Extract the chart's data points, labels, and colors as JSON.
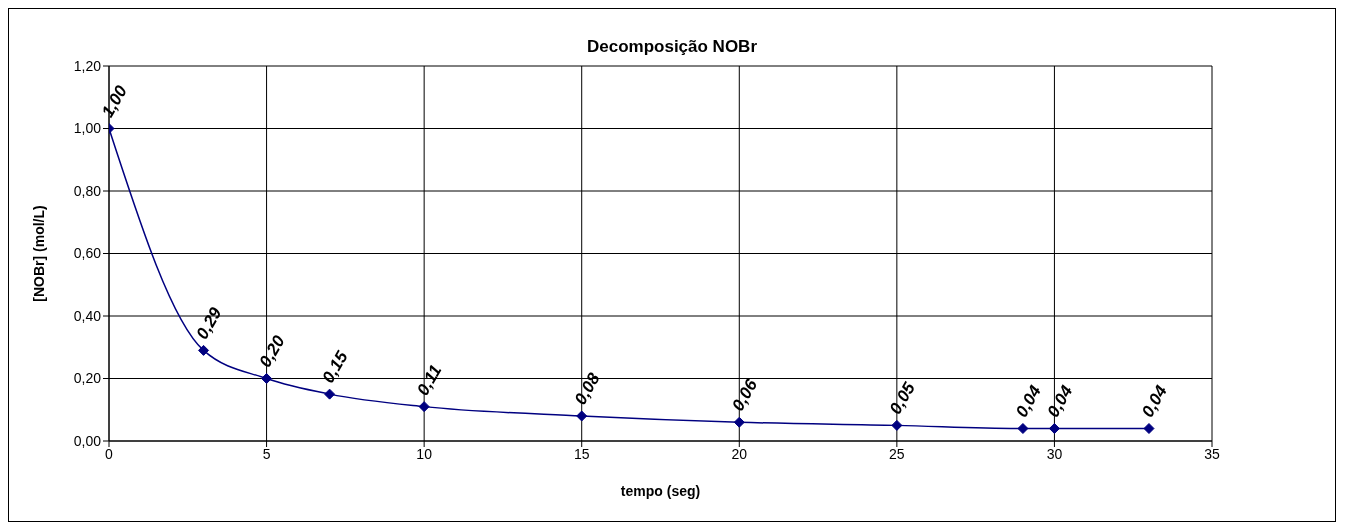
{
  "chart_data": {
    "type": "line",
    "title": "Decomposição NOBr",
    "xlabel": "tempo (seg)",
    "ylabel": "[NOBr] (mol/L)",
    "x": [
      0,
      3,
      5,
      7,
      10,
      15,
      20,
      25,
      29,
      30,
      33
    ],
    "values": [
      1.0,
      0.29,
      0.2,
      0.15,
      0.11,
      0.08,
      0.06,
      0.05,
      0.04,
      0.04,
      0.04
    ],
    "value_labels": [
      "1,00",
      "0,29",
      "0,20",
      "0,15",
      "0,11",
      "0,08",
      "0,06",
      "0,05",
      "0,04",
      "0,04",
      "0,04"
    ],
    "color": "#000080",
    "marker": "diamond",
    "line_style": "solid",
    "grid": true,
    "xlim": [
      0,
      35
    ],
    "xticks": [
      0,
      5,
      10,
      15,
      20,
      25,
      30,
      35
    ],
    "ylim": [
      0,
      1.2
    ],
    "yticks": [
      {
        "value": 0,
        "label": "0,00"
      },
      {
        "value": 0.2,
        "label": "0,20"
      },
      {
        "value": 0.4,
        "label": "0,40"
      },
      {
        "value": 0.6,
        "label": "0,60"
      },
      {
        "value": 0.8,
        "label": "0,80"
      },
      {
        "value": 1.0,
        "label": "1,00"
      },
      {
        "value": 1.2,
        "label": "1,20"
      }
    ]
  }
}
